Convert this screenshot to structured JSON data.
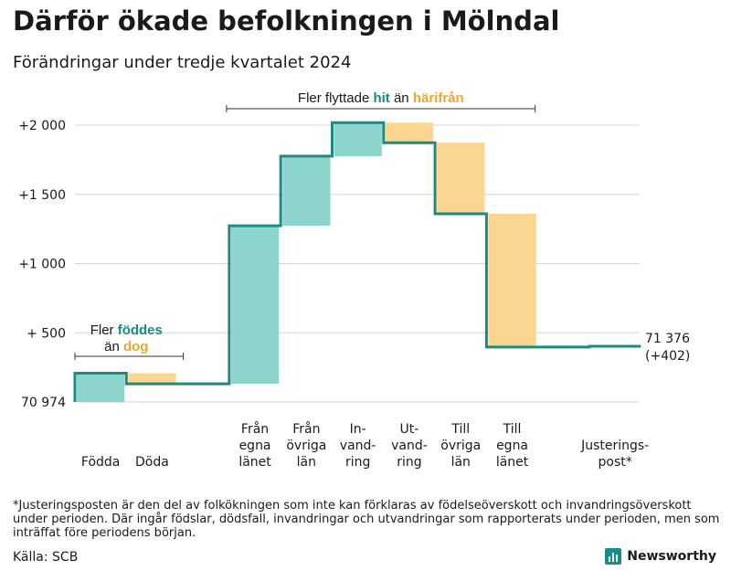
{
  "title": "Därför ökade befolkningen i Mölndal",
  "subtitle": "Förändringar under tredje kvartalet 2024",
  "chart_data": {
    "type": "waterfall",
    "baseline": 70974,
    "y_ticks": [
      {
        "value": 0,
        "label": "70 974"
      },
      {
        "value": 500,
        "label": "+  500"
      },
      {
        "value": 1000,
        "label": "+1 000"
      },
      {
        "value": 1500,
        "label": "+1 500"
      },
      {
        "value": 2000,
        "label": "+2 000"
      }
    ],
    "ylim": [
      0,
      2050
    ],
    "steps": [
      {
        "label": [
          "Födda"
        ],
        "change": 208
      },
      {
        "label": [
          "Döda"
        ],
        "change": -77
      },
      {
        "label": [],
        "change": 0
      },
      {
        "label": [
          "Från",
          "egna",
          "länet"
        ],
        "change": 1142
      },
      {
        "label": [
          "Från",
          "övriga",
          "län"
        ],
        "change": 503
      },
      {
        "label": [
          "In-",
          "vand-",
          "ring"
        ],
        "change": 242
      },
      {
        "label": [
          "Ut-",
          "vand-",
          "ring"
        ],
        "change": -145
      },
      {
        "label": [
          "Till",
          "övriga",
          "län"
        ],
        "change": -513
      },
      {
        "label": [
          "Till",
          "egna",
          "länet"
        ],
        "change": -963
      },
      {
        "label": [],
        "change": 0
      },
      {
        "label": [
          "Justerings-",
          "post*"
        ],
        "change": 6
      }
    ],
    "end_label": {
      "value": "71 376",
      "change": "(+402)"
    },
    "annotations": {
      "births": {
        "prefix": "Fler",
        "highlight_up": "föddes",
        "line2_prefix": "än",
        "highlight_down": "dog"
      },
      "migration": {
        "prefix": "Fler flyttade",
        "highlight_up": "hit",
        "middle": "än",
        "highlight_down": "härifrån"
      }
    },
    "colors": {
      "line": "#1b8a80",
      "increase": "#8dd4cc",
      "decrease": "#fbd690",
      "up_text": "#1b8a80",
      "down_text": "#f2a531"
    }
  },
  "footnote": "*Justeringsposten är den del av folkökningen som inte kan förklaras av födelseöverskott och invandringsöverskott under perioden. Där ingår födslar, dödsfall, invandringar och utvandringar som rapporterats under perioden, men som inträffat före periodens början.",
  "source": "Källa: SCB",
  "brand": "Newsworthy"
}
